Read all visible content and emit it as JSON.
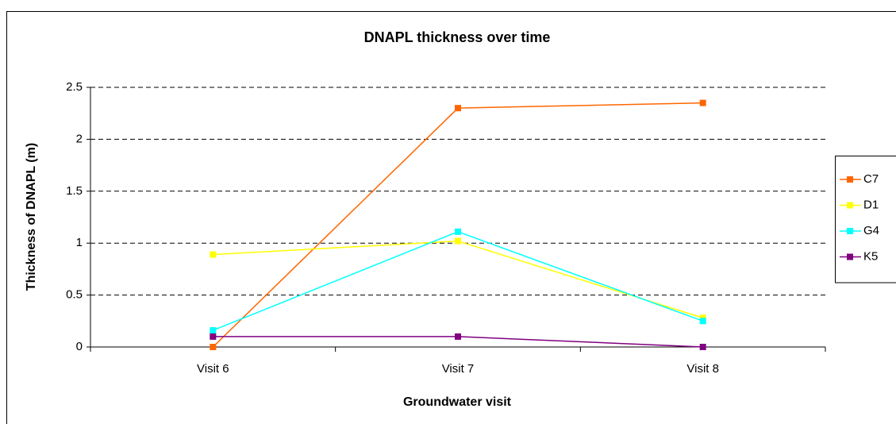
{
  "chart_data": {
    "type": "line",
    "title": "DNAPL thickness over time",
    "x_label": "Groundwater visit",
    "y_label": "Thickness of DNAPL (m)",
    "categories": [
      "Visit 6",
      "Visit 7",
      "Visit 8"
    ],
    "series": [
      {
        "name": "C7",
        "color": "#ff6600",
        "values": [
          0,
          2.3,
          2.35
        ]
      },
      {
        "name": "D1",
        "color": "#ffff00",
        "values": [
          0.89,
          1.02,
          0.28
        ]
      },
      {
        "name": "G4",
        "color": "#00ffff",
        "values": [
          0.16,
          1.11,
          0.25
        ]
      },
      {
        "name": "K5",
        "color": "#800080",
        "values": [
          0.1,
          0.1,
          0
        ]
      }
    ],
    "ylim": [
      0,
      2.5
    ],
    "yticks": [
      0,
      0.5,
      1,
      1.5,
      2,
      2.5
    ],
    "grid": true,
    "legend": "right"
  }
}
